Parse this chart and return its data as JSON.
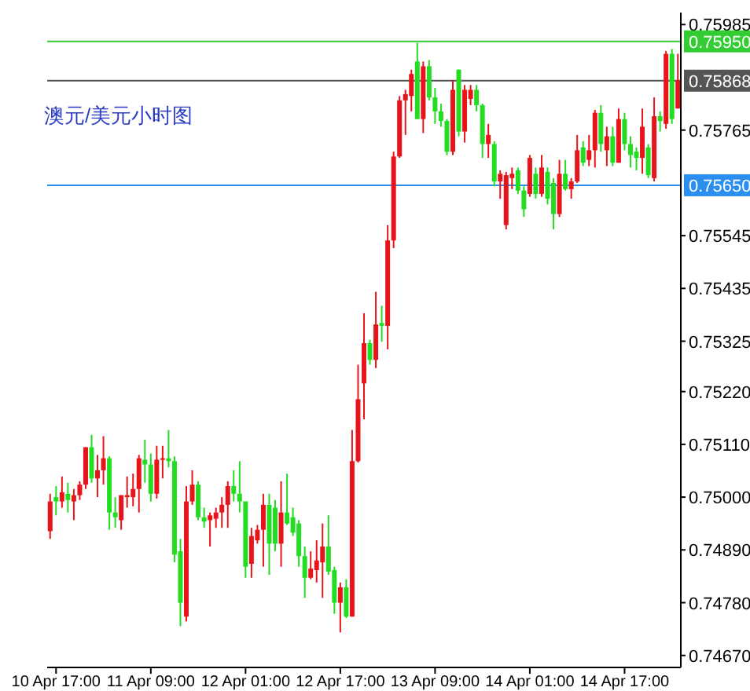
{
  "chart_data": {
    "type": "candlestick",
    "title": "澳元/美元小时图",
    "categories": [
      null,
      "10 Apr 17:00",
      null,
      null,
      null,
      null,
      null,
      null,
      null,
      null,
      null,
      null,
      null,
      null,
      null,
      null,
      null,
      "11 Apr 09:00",
      null,
      null,
      null,
      null,
      null,
      null,
      null,
      null,
      null,
      null,
      null,
      null,
      null,
      null,
      null,
      "12 Apr 01:00",
      null,
      null,
      null,
      null,
      null,
      null,
      null,
      null,
      null,
      null,
      null,
      null,
      null,
      null,
      null,
      "12 Apr 17:00",
      null,
      null,
      null,
      null,
      null,
      null,
      null,
      null,
      null,
      null,
      null,
      null,
      null,
      null,
      null,
      "13 Apr 09:00",
      null,
      null,
      null,
      null,
      null,
      null,
      null,
      null,
      null,
      null,
      null,
      null,
      null,
      null,
      null,
      "14 Apr 01:00",
      null,
      null,
      null,
      null,
      null,
      null,
      null,
      null,
      null,
      null,
      null,
      null,
      null,
      null,
      null,
      "14 Apr 17:00",
      null,
      null,
      null,
      null,
      null,
      null,
      null,
      null,
      null
    ],
    "ohlc": [
      [
        0.74929,
        0.75007,
        0.74913,
        0.74991
      ],
      [
        0.75,
        0.75023,
        0.74962,
        0.74991
      ],
      [
        0.74991,
        0.75043,
        0.74978,
        0.7501
      ],
      [
        0.75007,
        0.7503,
        0.74968,
        0.74994
      ],
      [
        0.74991,
        0.75017,
        0.74952,
        0.75004
      ],
      [
        0.75004,
        0.75033,
        0.74994,
        0.75026
      ],
      [
        0.75026,
        0.75104,
        0.75017,
        0.75104
      ],
      [
        0.75104,
        0.7513,
        0.7503,
        0.75039
      ],
      [
        0.75039,
        0.75088,
        0.75,
        0.75056
      ],
      [
        0.75056,
        0.75127,
        0.75026,
        0.75081
      ],
      [
        0.75081,
        0.75085,
        0.74932,
        0.74968
      ],
      [
        0.74968,
        0.75,
        0.74936,
        0.74958
      ],
      [
        0.74952,
        0.75004,
        0.74932,
        0.75004
      ],
      [
        0.75,
        0.75043,
        0.74978,
        0.75004
      ],
      [
        0.75,
        0.75049,
        0.74981,
        0.75017
      ],
      [
        0.75017,
        0.75088,
        0.74968,
        0.75081
      ],
      [
        0.75078,
        0.7512,
        0.7503,
        0.75068
      ],
      [
        0.75068,
        0.75091,
        0.74991,
        0.75007
      ],
      [
        0.75007,
        0.75107,
        0.74997,
        0.75078
      ],
      [
        0.75078,
        0.75107,
        0.75039,
        0.75081
      ],
      [
        0.75081,
        0.7514,
        0.75062,
        0.75075
      ],
      [
        0.75075,
        0.75085,
        0.74864,
        0.7488
      ],
      [
        0.74887,
        0.74913,
        0.74731,
        0.7478
      ],
      [
        0.74751,
        0.75023,
        0.74741,
        0.74991
      ],
      [
        0.74991,
        0.75056,
        0.74984,
        0.75026
      ],
      [
        0.75026,
        0.75033,
        0.74952,
        0.74958
      ],
      [
        0.74958,
        0.74978,
        0.74936,
        0.74949
      ],
      [
        0.74952,
        0.74968,
        0.74897,
        0.74962
      ],
      [
        0.74955,
        0.74978,
        0.74936,
        0.74968
      ],
      [
        0.74968,
        0.75,
        0.74936,
        0.74984
      ],
      [
        0.74984,
        0.75033,
        0.74936,
        0.75023
      ],
      [
        0.75023,
        0.75056,
        0.74991,
        0.75007
      ],
      [
        0.75007,
        0.75075,
        0.74968,
        0.74991
      ],
      [
        0.74991,
        0.74991,
        0.74832,
        0.74855
      ],
      [
        0.74861,
        0.74936,
        0.74832,
        0.74919
      ],
      [
        0.7491,
        0.74942,
        0.74903,
        0.74932
      ],
      [
        0.74932,
        0.75007,
        0.74855,
        0.74984
      ],
      [
        0.74984,
        0.75007,
        0.74838,
        0.74903
      ],
      [
        0.74978,
        0.74994,
        0.74887,
        0.74903
      ],
      [
        0.74903,
        0.75033,
        0.74855,
        0.74968
      ],
      [
        0.74968,
        0.75049,
        0.74942,
        0.74945
      ],
      [
        0.74958,
        0.74978,
        0.74919,
        0.74926
      ],
      [
        0.74945,
        0.74952,
        0.74855,
        0.74877
      ],
      [
        0.74877,
        0.74897,
        0.7479,
        0.74832
      ],
      [
        0.74832,
        0.74887,
        0.74829,
        0.74851
      ],
      [
        0.74848,
        0.7491,
        0.74822,
        0.74868
      ],
      [
        0.74864,
        0.74945,
        0.7479,
        0.74897
      ],
      [
        0.74897,
        0.74962,
        0.74838,
        0.74845
      ],
      [
        0.74848,
        0.74855,
        0.74757,
        0.7478
      ],
      [
        0.7478,
        0.74822,
        0.74718,
        0.74812
      ],
      [
        0.74812,
        0.74829,
        0.74748,
        0.74751
      ],
      [
        0.74751,
        0.7514,
        0.74751,
        0.75075
      ],
      [
        0.75075,
        0.75276,
        0.75072,
        0.75204
      ],
      [
        0.75237,
        0.75383,
        0.75162,
        0.75321
      ],
      [
        0.75321,
        0.75328,
        0.75276,
        0.75286
      ],
      [
        0.75286,
        0.75428,
        0.75269,
        0.7536
      ],
      [
        0.75363,
        0.75399,
        0.75324,
        0.75357
      ],
      [
        0.75357,
        0.75567,
        0.75308,
        0.75535
      ],
      [
        0.75535,
        0.7572,
        0.75519,
        0.7571
      ],
      [
        0.7571,
        0.75836,
        0.75707,
        0.75827
      ],
      [
        0.75827,
        0.75849,
        0.75755,
        0.7584
      ],
      [
        0.75836,
        0.75891,
        0.75804,
        0.75882
      ],
      [
        0.75908,
        0.75947,
        0.75788,
        0.75788
      ],
      [
        0.75788,
        0.75908,
        0.75759,
        0.75898
      ],
      [
        0.75898,
        0.75911,
        0.75827,
        0.75833
      ],
      [
        0.75833,
        0.75853,
        0.75778,
        0.75804
      ],
      [
        0.75804,
        0.7582,
        0.75772,
        0.75784
      ],
      [
        0.75784,
        0.75788,
        0.75713,
        0.7572
      ],
      [
        0.7572,
        0.75869,
        0.75713,
        0.75849
      ],
      [
        0.75891,
        0.75891,
        0.75752,
        0.75762
      ],
      [
        0.75762,
        0.75859,
        0.75739,
        0.75849
      ],
      [
        0.7583,
        0.75859,
        0.75817,
        0.75849
      ],
      [
        0.75849,
        0.75859,
        0.75804,
        0.75817
      ],
      [
        0.75817,
        0.7582,
        0.75707,
        0.75736
      ],
      [
        0.75736,
        0.75778,
        0.75707,
        0.75755
      ],
      [
        0.75736,
        0.75742,
        0.75648,
        0.75658
      ],
      [
        0.75658,
        0.75681,
        0.75622,
        0.75674
      ],
      [
        0.75567,
        0.75678,
        0.75558,
        0.75671
      ],
      [
        0.75665,
        0.75687,
        0.75642,
        0.75674
      ],
      [
        0.75681,
        0.75687,
        0.75632,
        0.75639
      ],
      [
        0.75639,
        0.75648,
        0.75584,
        0.756
      ],
      [
        0.75632,
        0.75713,
        0.75626,
        0.75707
      ],
      [
        0.75674,
        0.75687,
        0.75622,
        0.75632
      ],
      [
        0.75632,
        0.75713,
        0.75626,
        0.75687
      ],
      [
        0.75678,
        0.75687,
        0.7561,
        0.75622
      ],
      [
        0.75655,
        0.75665,
        0.75558,
        0.7559
      ],
      [
        0.7559,
        0.75703,
        0.75584,
        0.75674
      ],
      [
        0.75674,
        0.75703,
        0.75639,
        0.75642
      ],
      [
        0.75642,
        0.75665,
        0.75622,
        0.75658
      ],
      [
        0.75658,
        0.75755,
        0.75655,
        0.75723
      ],
      [
        0.75729,
        0.75742,
        0.7569,
        0.75697
      ],
      [
        0.75703,
        0.75755,
        0.7569,
        0.75723
      ],
      [
        0.75723,
        0.75807,
        0.75687,
        0.75801
      ],
      [
        0.75801,
        0.75817,
        0.7572,
        0.75736
      ],
      [
        0.75723,
        0.75772,
        0.7569,
        0.75752
      ],
      [
        0.75752,
        0.75772,
        0.7569,
        0.75697
      ],
      [
        0.75697,
        0.7581,
        0.75697,
        0.75788
      ],
      [
        0.75788,
        0.75801,
        0.75723,
        0.75736
      ],
      [
        0.75736,
        0.75752,
        0.75687,
        0.75713
      ],
      [
        0.7572,
        0.75729,
        0.75681,
        0.75707
      ],
      [
        0.75707,
        0.7581,
        0.75674,
        0.75772
      ],
      [
        0.75729,
        0.75736,
        0.75665,
        0.75671
      ],
      [
        0.75665,
        0.75833,
        0.75658,
        0.75794
      ],
      [
        0.75794,
        0.75804,
        0.75762,
        0.75784
      ],
      [
        0.75778,
        0.7593,
        0.75768,
        0.75924
      ],
      [
        0.75924,
        0.75934,
        0.75778,
        0.75788
      ],
      [
        0.7581,
        0.75924,
        0.7581,
        0.75869
      ]
    ],
    "colors": [
      "#e8141b",
      "#22dd22",
      "#e8141b",
      "#22dd22",
      "#e8141b",
      "#e8141b",
      "#e8141b",
      "#22dd22",
      "#e8141b",
      "#e8141b",
      "#22dd22",
      "#22dd22",
      "#e8141b",
      "#e8141b",
      "#e8141b",
      "#e8141b",
      "#22dd22",
      "#22dd22",
      "#e8141b",
      "#e8141b",
      "#22dd22",
      "#22dd22",
      "#22dd22",
      "#e8141b",
      "#e8141b",
      "#22dd22",
      "#22dd22",
      "#e8141b",
      "#e8141b",
      "#e8141b",
      "#e8141b",
      "#22dd22",
      "#22dd22",
      "#22dd22",
      "#e8141b",
      "#e8141b",
      "#e8141b",
      "#22dd22",
      "#22dd22",
      "#e8141b",
      "#22dd22",
      "#22dd22",
      "#22dd22",
      "#22dd22",
      "#e8141b",
      "#e8141b",
      "#e8141b",
      "#22dd22",
      "#22dd22",
      "#e8141b",
      "#22dd22",
      "#e8141b",
      "#e8141b",
      "#e8141b",
      "#22dd22",
      "#e8141b",
      "#22dd22",
      "#e8141b",
      "#e8141b",
      "#e8141b",
      "#e8141b",
      "#e8141b",
      "#22dd22",
      "#e8141b",
      "#22dd22",
      "#22dd22",
      "#22dd22",
      "#22dd22",
      "#e8141b",
      "#22dd22",
      "#e8141b",
      "#e8141b",
      "#22dd22",
      "#22dd22",
      "#e8141b",
      "#22dd22",
      "#e8141b",
      "#e8141b",
      "#e8141b",
      "#22dd22",
      "#22dd22",
      "#e8141b",
      "#22dd22",
      "#e8141b",
      "#22dd22",
      "#22dd22",
      "#e8141b",
      "#22dd22",
      "#e8141b",
      "#e8141b",
      "#22dd22",
      "#e8141b",
      "#e8141b",
      "#22dd22",
      "#e8141b",
      "#22dd22",
      "#e8141b",
      "#22dd22",
      "#22dd22",
      "#22dd22",
      "#e8141b",
      "#22dd22",
      "#e8141b",
      "#22dd22",
      "#e8141b",
      "#22dd22",
      "#e8141b"
    ],
    "ylim": [
      0.74645,
      0.7601
    ],
    "yticks": [
      {
        "value": 0.7467,
        "label": "0.74670"
      },
      {
        "value": 0.7478,
        "label": "0.74780"
      },
      {
        "value": 0.7489,
        "label": "0.74890"
      },
      {
        "value": 0.75,
        "label": "0.75000"
      },
      {
        "value": 0.7511,
        "label": "0.75110"
      },
      {
        "value": 0.7522,
        "label": "0.75220"
      },
      {
        "value": 0.75325,
        "label": "0.75325"
      },
      {
        "value": 0.75435,
        "label": "0.75435"
      },
      {
        "value": 0.75545,
        "label": "0.75545"
      },
      {
        "value": 0.75765,
        "label": "0.75765"
      },
      {
        "value": 0.75985,
        "label": "0.75985"
      }
    ],
    "ref_lines": [
      {
        "axis": "y",
        "value": 0.7595,
        "label": "0.75950",
        "color": "#33cc33"
      },
      {
        "axis": "y",
        "value": 0.75868,
        "label": "0.75868",
        "color": "#555555"
      },
      {
        "axis": "y",
        "value": 0.7565,
        "label": "0.75650",
        "color": "#2b8ff0"
      }
    ]
  }
}
